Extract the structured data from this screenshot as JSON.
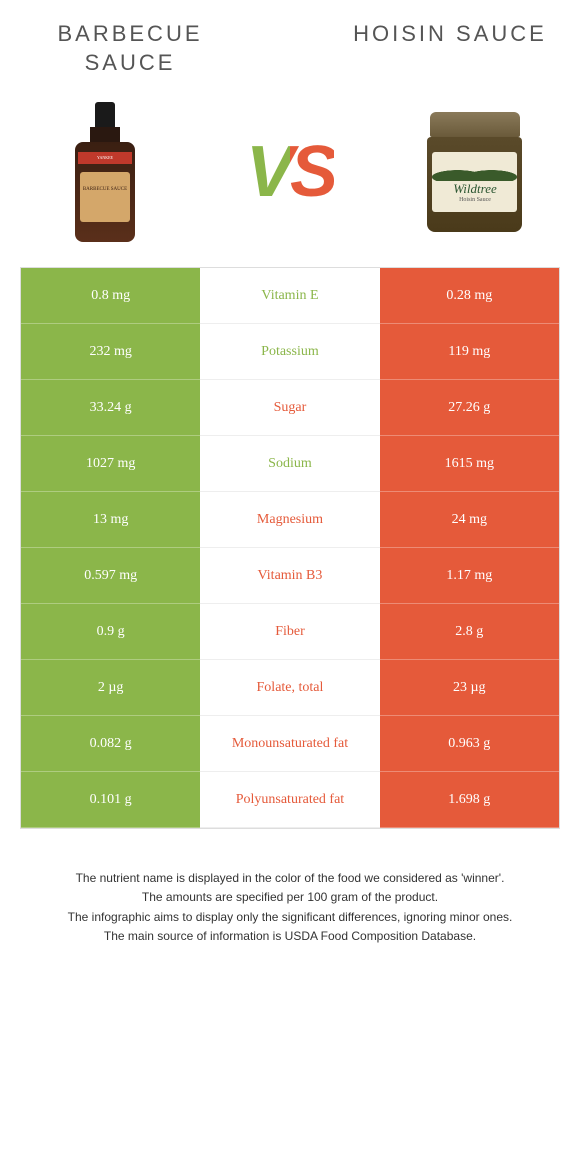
{
  "left_title": "Barbecue sauce",
  "right_title": "Hoisin sauce",
  "vs_text": "VS",
  "colors": {
    "left": "#8bb64a",
    "right": "#e55a3a",
    "left_text_winner": "#8bb64a",
    "right_text_winner": "#e55a3a"
  },
  "product_left": {
    "brand": "YANKEE",
    "sub": "BARBECUE SAUCE"
  },
  "product_right": {
    "brand": "Wildtree",
    "sub": "Hoisin Sauce"
  },
  "rows": [
    {
      "nutrient": "Vitamin E",
      "left": "0.8 mg",
      "right": "0.28 mg",
      "winner": "left"
    },
    {
      "nutrient": "Potassium",
      "left": "232 mg",
      "right": "119 mg",
      "winner": "left"
    },
    {
      "nutrient": "Sugar",
      "left": "33.24 g",
      "right": "27.26 g",
      "winner": "right"
    },
    {
      "nutrient": "Sodium",
      "left": "1027 mg",
      "right": "1615 mg",
      "winner": "left"
    },
    {
      "nutrient": "Magnesium",
      "left": "13 mg",
      "right": "24 mg",
      "winner": "right"
    },
    {
      "nutrient": "Vitamin B3",
      "left": "0.597 mg",
      "right": "1.17 mg",
      "winner": "right"
    },
    {
      "nutrient": "Fiber",
      "left": "0.9 g",
      "right": "2.8 g",
      "winner": "right"
    },
    {
      "nutrient": "Folate, total",
      "left": "2 µg",
      "right": "23 µg",
      "winner": "right"
    },
    {
      "nutrient": "Monounsaturated fat",
      "left": "0.082 g",
      "right": "0.963 g",
      "winner": "right"
    },
    {
      "nutrient": "Polyunsaturated fat",
      "left": "0.101 g",
      "right": "1.698 g",
      "winner": "right"
    }
  ],
  "footer_lines": [
    "The nutrient name is displayed in the color of the food we considered as 'winner'.",
    "The amounts are specified per 100 gram of the product.",
    "The infographic aims to display only the significant differences, ignoring minor ones.",
    "The main source of information is USDA Food Composition Database."
  ]
}
